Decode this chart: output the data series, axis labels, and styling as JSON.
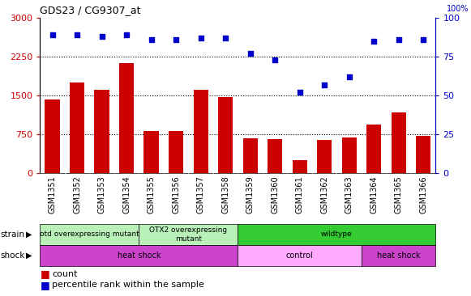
{
  "title": "GDS23 / CG9307_at",
  "samples": [
    "GSM1351",
    "GSM1352",
    "GSM1353",
    "GSM1354",
    "GSM1355",
    "GSM1356",
    "GSM1357",
    "GSM1358",
    "GSM1359",
    "GSM1360",
    "GSM1361",
    "GSM1362",
    "GSM1363",
    "GSM1364",
    "GSM1365",
    "GSM1366"
  ],
  "counts": [
    1420,
    1750,
    1620,
    2120,
    820,
    820,
    1620,
    1470,
    680,
    660,
    260,
    650,
    700,
    940,
    1180,
    730
  ],
  "percentiles": [
    89,
    89,
    88,
    89,
    86,
    86,
    87,
    87,
    77,
    73,
    52,
    57,
    62,
    85,
    86,
    86
  ],
  "ylim_left": [
    0,
    3000
  ],
  "ylim_right": [
    0,
    100
  ],
  "yticks_left": [
    0,
    750,
    1500,
    2250,
    3000
  ],
  "yticks_right": [
    0,
    25,
    50,
    75,
    100
  ],
  "bar_color": "#cc0000",
  "dot_color": "#0000cc",
  "strain_groups": [
    {
      "label": "otd overexpressing mutant",
      "start": 0,
      "end": 4,
      "color": "#b8f0b8"
    },
    {
      "label": "OTX2 overexpressing\nmutant",
      "start": 4,
      "end": 8,
      "color": "#b8f0b8"
    },
    {
      "label": "wildtype",
      "start": 8,
      "end": 16,
      "color": "#33cc33"
    }
  ],
  "shock_groups": [
    {
      "label": "heat shock",
      "start": 0,
      "end": 8,
      "color": "#cc44cc"
    },
    {
      "label": "control",
      "start": 8,
      "end": 13,
      "color": "#ffaaff"
    },
    {
      "label": "heat shock",
      "start": 13,
      "end": 16,
      "color": "#cc44cc"
    }
  ],
  "legend_count_color": "#cc0000",
  "legend_pct_color": "#0000cc",
  "legend_count_label": "count",
  "legend_pct_label": "percentile rank within the sample",
  "hline_values": [
    750,
    1500,
    2250
  ],
  "tick_label_fontsize": 7,
  "bar_width": 0.6
}
